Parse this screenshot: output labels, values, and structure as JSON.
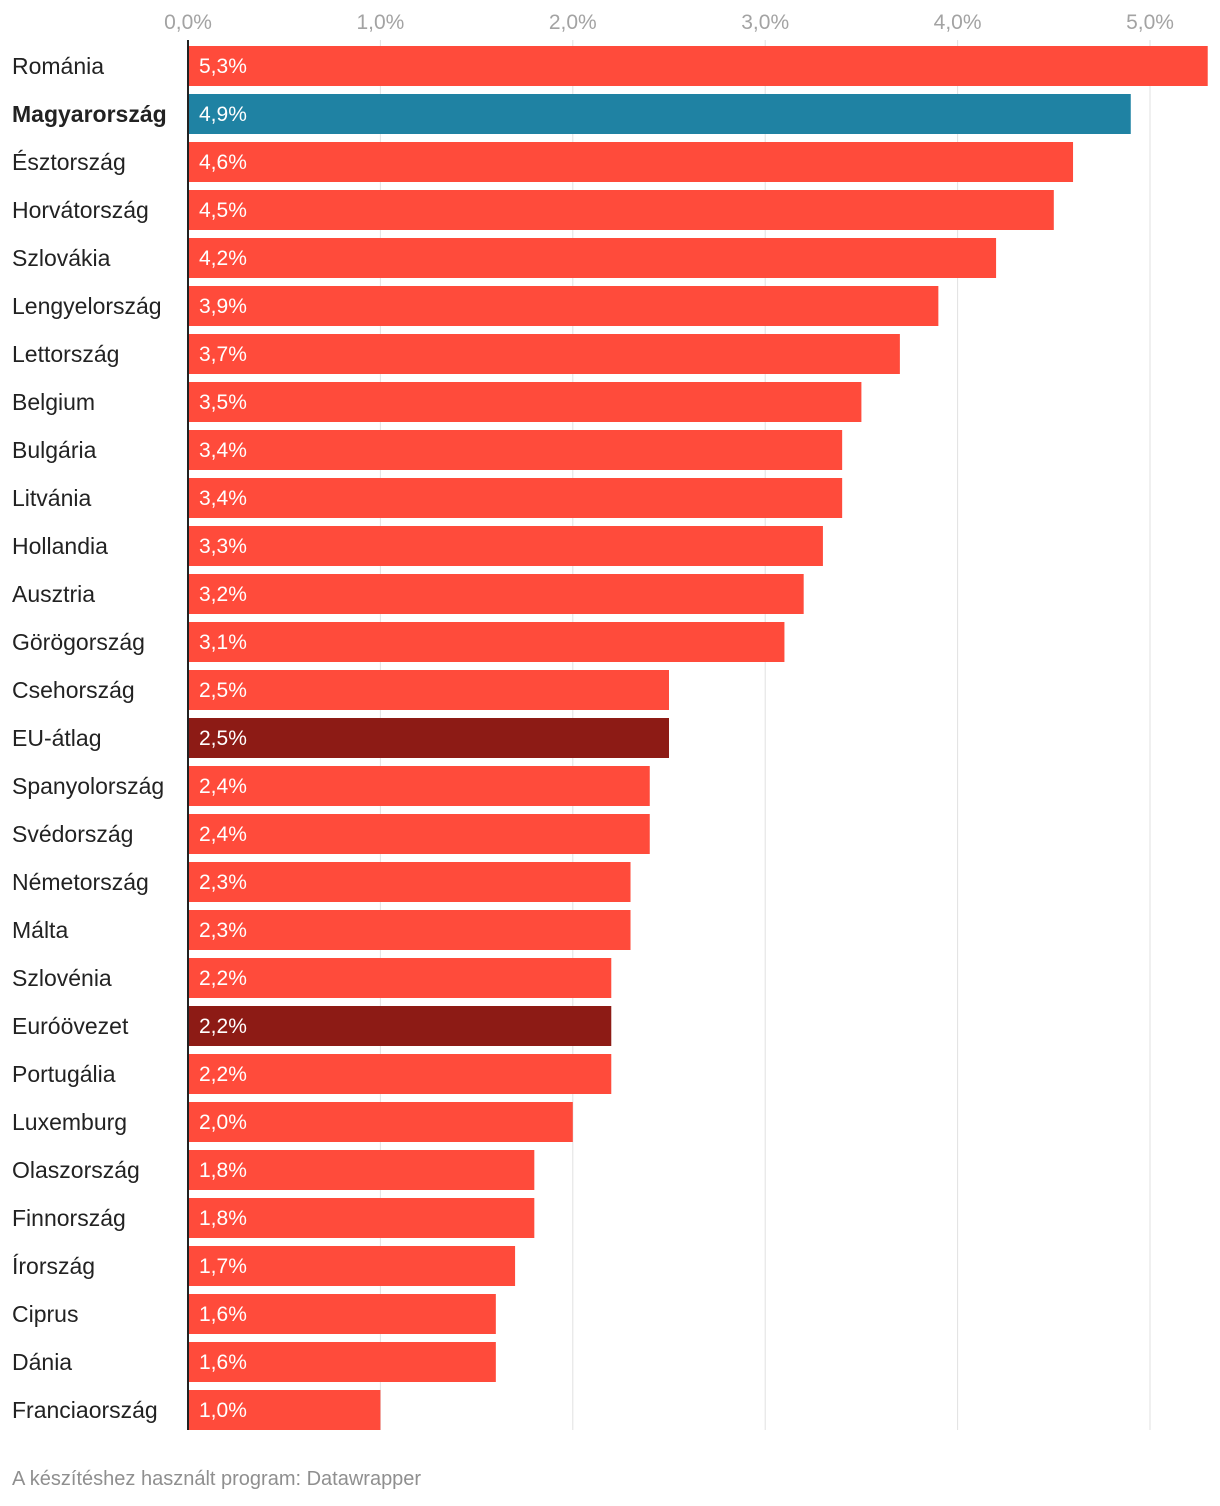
{
  "chart_data": {
    "type": "bar",
    "orientation": "horizontal",
    "x_ticks": [
      "0,0%",
      "1,0%",
      "2,0%",
      "3,0%",
      "4,0%",
      "5,0%"
    ],
    "xlim": [
      0,
      5.3
    ],
    "grid": true,
    "categories": [
      "Románia",
      "Magyarország",
      "Észtország",
      "Horvátország",
      "Szlovákia",
      "Lengyelország",
      "Lettország",
      "Belgium",
      "Bulgária",
      "Litvánia",
      "Hollandia",
      "Ausztria",
      "Görögország",
      "Csehország",
      "EU-átlag",
      "Spanyolország",
      "Svédország",
      "Németország",
      "Málta",
      "Szlovénia",
      "Euróövezet",
      "Portugália",
      "Luxemburg",
      "Olaszország",
      "Finnország",
      "Írország",
      "Ciprus",
      "Dánia",
      "Franciaország"
    ],
    "values": [
      5.3,
      4.9,
      4.6,
      4.5,
      4.2,
      3.9,
      3.7,
      3.5,
      3.4,
      3.4,
      3.3,
      3.2,
      3.1,
      2.5,
      2.5,
      2.4,
      2.4,
      2.3,
      2.3,
      2.2,
      2.2,
      2.2,
      2.0,
      1.8,
      1.8,
      1.7,
      1.6,
      1.6,
      1.0
    ],
    "value_labels": [
      "5,3%",
      "4,9%",
      "4,6%",
      "4,5%",
      "4,2%",
      "3,9%",
      "3,7%",
      "3,5%",
      "3,4%",
      "3,4%",
      "3,3%",
      "3,2%",
      "3,1%",
      "2,5%",
      "2,5%",
      "2,4%",
      "2,4%",
      "2,3%",
      "2,3%",
      "2,2%",
      "2,2%",
      "2,2%",
      "2,0%",
      "1,8%",
      "1,8%",
      "1,7%",
      "1,6%",
      "1,6%",
      "1,0%"
    ],
    "highlight": {
      "Magyarország": "#1f82a3",
      "EU-átlag": "#8d1b15",
      "Euróövezet": "#8d1b15"
    },
    "bold_categories": [
      "Magyarország"
    ],
    "default_color": "#ff4b3b"
  },
  "footer": {
    "credit": "A készítéshez használt program: Datawrapper"
  }
}
